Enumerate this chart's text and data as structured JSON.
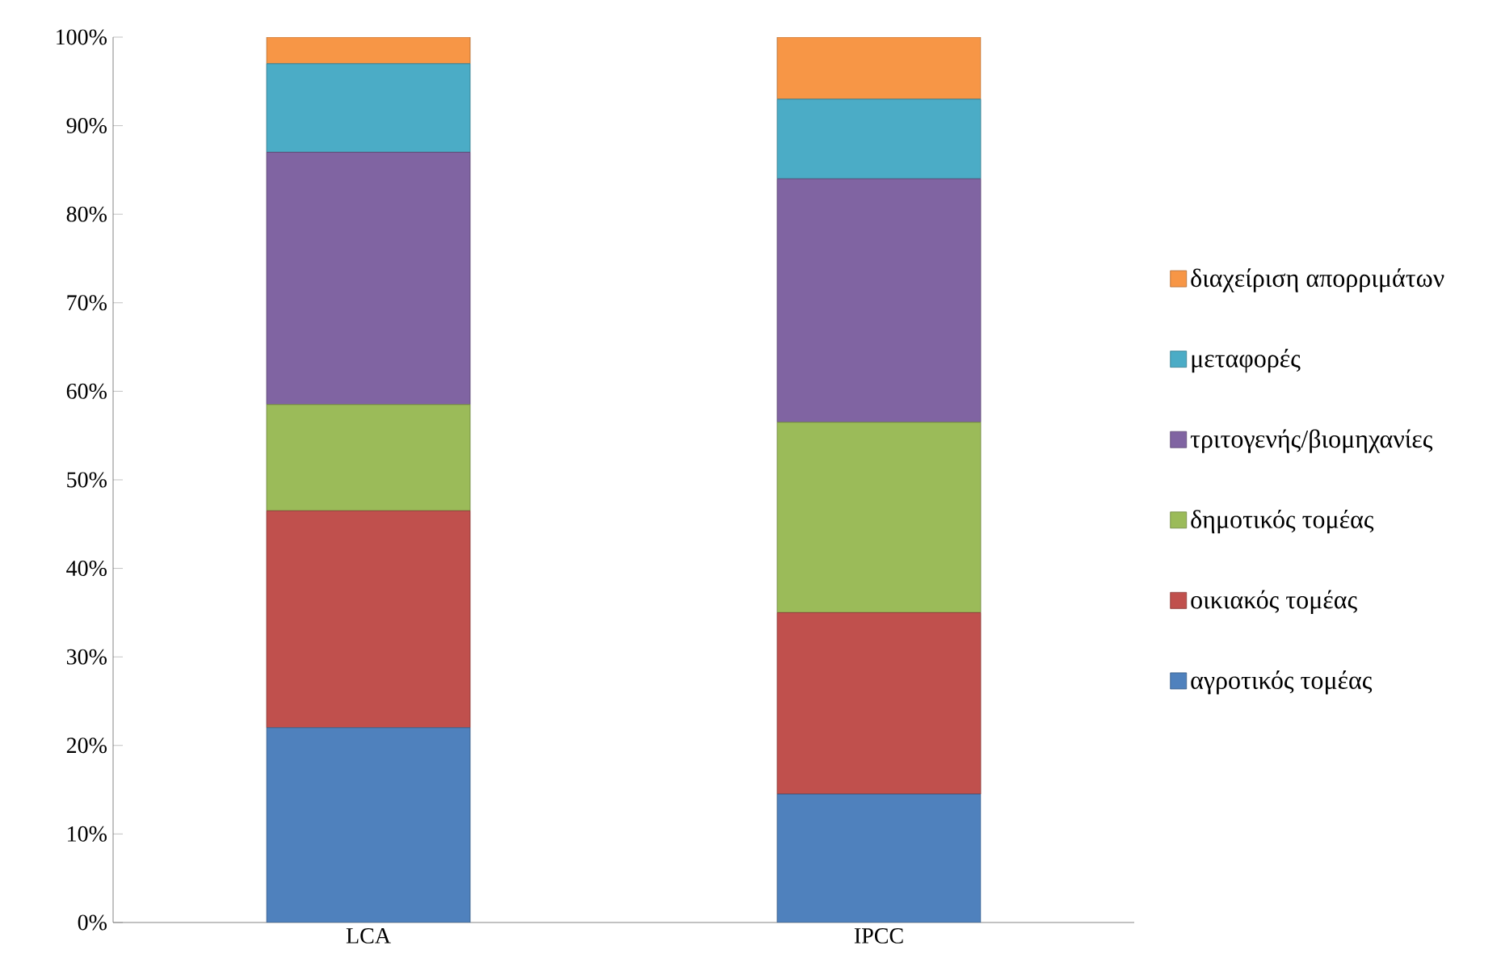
{
  "chart_data": {
    "type": "bar",
    "stacked": true,
    "categories": [
      "LCA",
      "IPCC"
    ],
    "series": [
      {
        "name": "αγροτικός τομέας",
        "color": "#4f81bd",
        "values": [
          22,
          14.5
        ]
      },
      {
        "name": "οικιακός τομέας",
        "color": "#c0504d",
        "values": [
          24.5,
          20.5
        ]
      },
      {
        "name": "δημοτικός τομέας",
        "color": "#9bbb59",
        "values": [
          12,
          21.5
        ]
      },
      {
        "name": "τριτογενής/βιομηχανίες",
        "color": "#8064a2",
        "values": [
          28.5,
          27.5
        ]
      },
      {
        "name": "μεταφορές",
        "color": "#4bacc6",
        "values": [
          10,
          9
        ]
      },
      {
        "name": "διαχείριση απορριμάτων",
        "color": "#f79646",
        "values": [
          3,
          7
        ]
      }
    ],
    "ylim": [
      0,
      100
    ],
    "yticks": [
      {
        "value": 0,
        "label": "0%"
      },
      {
        "value": 10,
        "label": "10%"
      },
      {
        "value": 20,
        "label": "20%"
      },
      {
        "value": 30,
        "label": "30%"
      },
      {
        "value": 40,
        "label": "40%"
      },
      {
        "value": 50,
        "label": "50%"
      },
      {
        "value": 60,
        "label": "60%"
      },
      {
        "value": 70,
        "label": "70%"
      },
      {
        "value": 80,
        "label": "80%"
      },
      {
        "value": 90,
        "label": "90%"
      },
      {
        "value": 100,
        "label": "100%"
      }
    ],
    "legend": "right"
  }
}
